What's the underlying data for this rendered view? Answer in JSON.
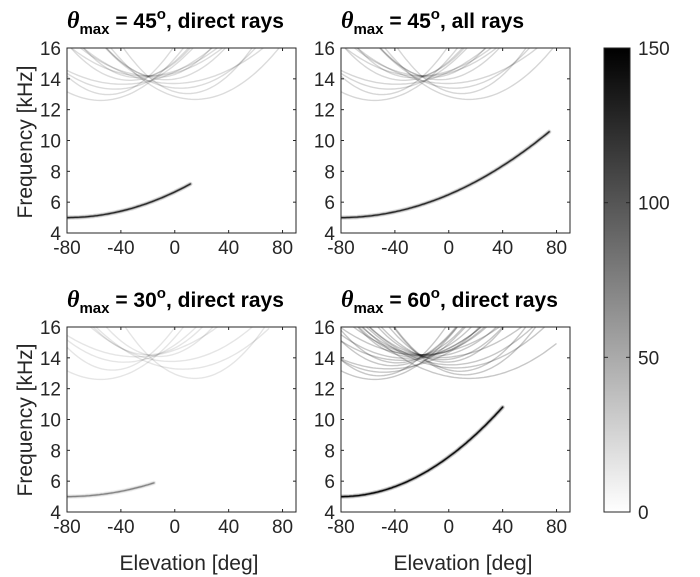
{
  "chart_data": [
    {
      "type": "heatmap",
      "title": {
        "symbol": "θ",
        "subscript": "max",
        "pre": " = 45",
        "superscript": "o",
        "post": ", direct rays"
      },
      "xlabel": "",
      "ylabel": "Frequency [kHz]",
      "xlim": [
        -80,
        90
      ],
      "ylim": [
        4,
        16
      ],
      "xticks": [
        "-80",
        "-40",
        "0",
        "40",
        "80"
      ],
      "yticks": [
        "4",
        "6",
        "8",
        "10",
        "12",
        "14",
        "16"
      ],
      "grid": false,
      "features": {
        "low_band": {
          "x_end": 12,
          "y_end": 7.2,
          "intensity": 0.75
        },
        "upper_arcs": {
          "count": 14,
          "intensity": 0.14,
          "x_min": -80,
          "x_max": 80
        }
      }
    },
    {
      "type": "heatmap",
      "title": {
        "symbol": "θ",
        "subscript": "max",
        "pre": " = 45",
        "superscript": "o",
        "post": ", all rays"
      },
      "xlabel": "",
      "ylabel": "",
      "xlim": [
        -80,
        90
      ],
      "ylim": [
        4,
        16
      ],
      "xticks": [
        "-80",
        "-40",
        "0",
        "40",
        "80"
      ],
      "yticks": [
        "4",
        "6",
        "8",
        "10",
        "12",
        "14",
        "16"
      ],
      "grid": false,
      "features": {
        "low_band": {
          "x_end": 75,
          "y_end": 10.6,
          "intensity": 0.75
        },
        "upper_arcs": {
          "count": 14,
          "intensity": 0.16,
          "x_min": -80,
          "x_max": 80
        }
      }
    },
    {
      "type": "heatmap",
      "title": {
        "symbol": "θ",
        "subscript": "max",
        "pre": " = 30",
        "superscript": "o",
        "post": ", direct rays"
      },
      "xlabel": "Elevation [deg]",
      "ylabel": "Frequency [kHz]",
      "xlim": [
        -80,
        90
      ],
      "ylim": [
        4,
        16
      ],
      "xticks": [
        "-80",
        "-40",
        "0",
        "40",
        "80"
      ],
      "yticks": [
        "4",
        "6",
        "8",
        "10",
        "12",
        "14",
        "16"
      ],
      "grid": false,
      "features": {
        "low_band": {
          "x_end": -15,
          "y_end": 5.9,
          "intensity": 0.35
        },
        "upper_arcs": {
          "count": 9,
          "intensity": 0.1,
          "x_min": -80,
          "x_max": 70
        }
      }
    },
    {
      "type": "heatmap",
      "title": {
        "symbol": "θ",
        "subscript": "max",
        "pre": " = 60",
        "superscript": "o",
        "post": ", direct rays"
      },
      "xlabel": "Elevation [deg]",
      "ylabel": "",
      "xlim": [
        -80,
        90
      ],
      "ylim": [
        4,
        16
      ],
      "xticks": [
        "-80",
        "-40",
        "0",
        "40",
        "80"
      ],
      "yticks": [
        "4",
        "6",
        "8",
        "10",
        "12",
        "14",
        "16"
      ],
      "grid": false,
      "features": {
        "low_band": {
          "x_end": 40,
          "y_end": 10.8,
          "intensity": 0.95
        },
        "upper_arcs": {
          "count": 22,
          "intensity": 0.22,
          "x_min": -80,
          "x_max": 80
        }
      }
    },
    {
      "type": "colorbar",
      "range": [
        0,
        150
      ],
      "ticks": [
        "0",
        "50",
        "100",
        "150"
      ],
      "colormap": "white-to-black"
    }
  ]
}
